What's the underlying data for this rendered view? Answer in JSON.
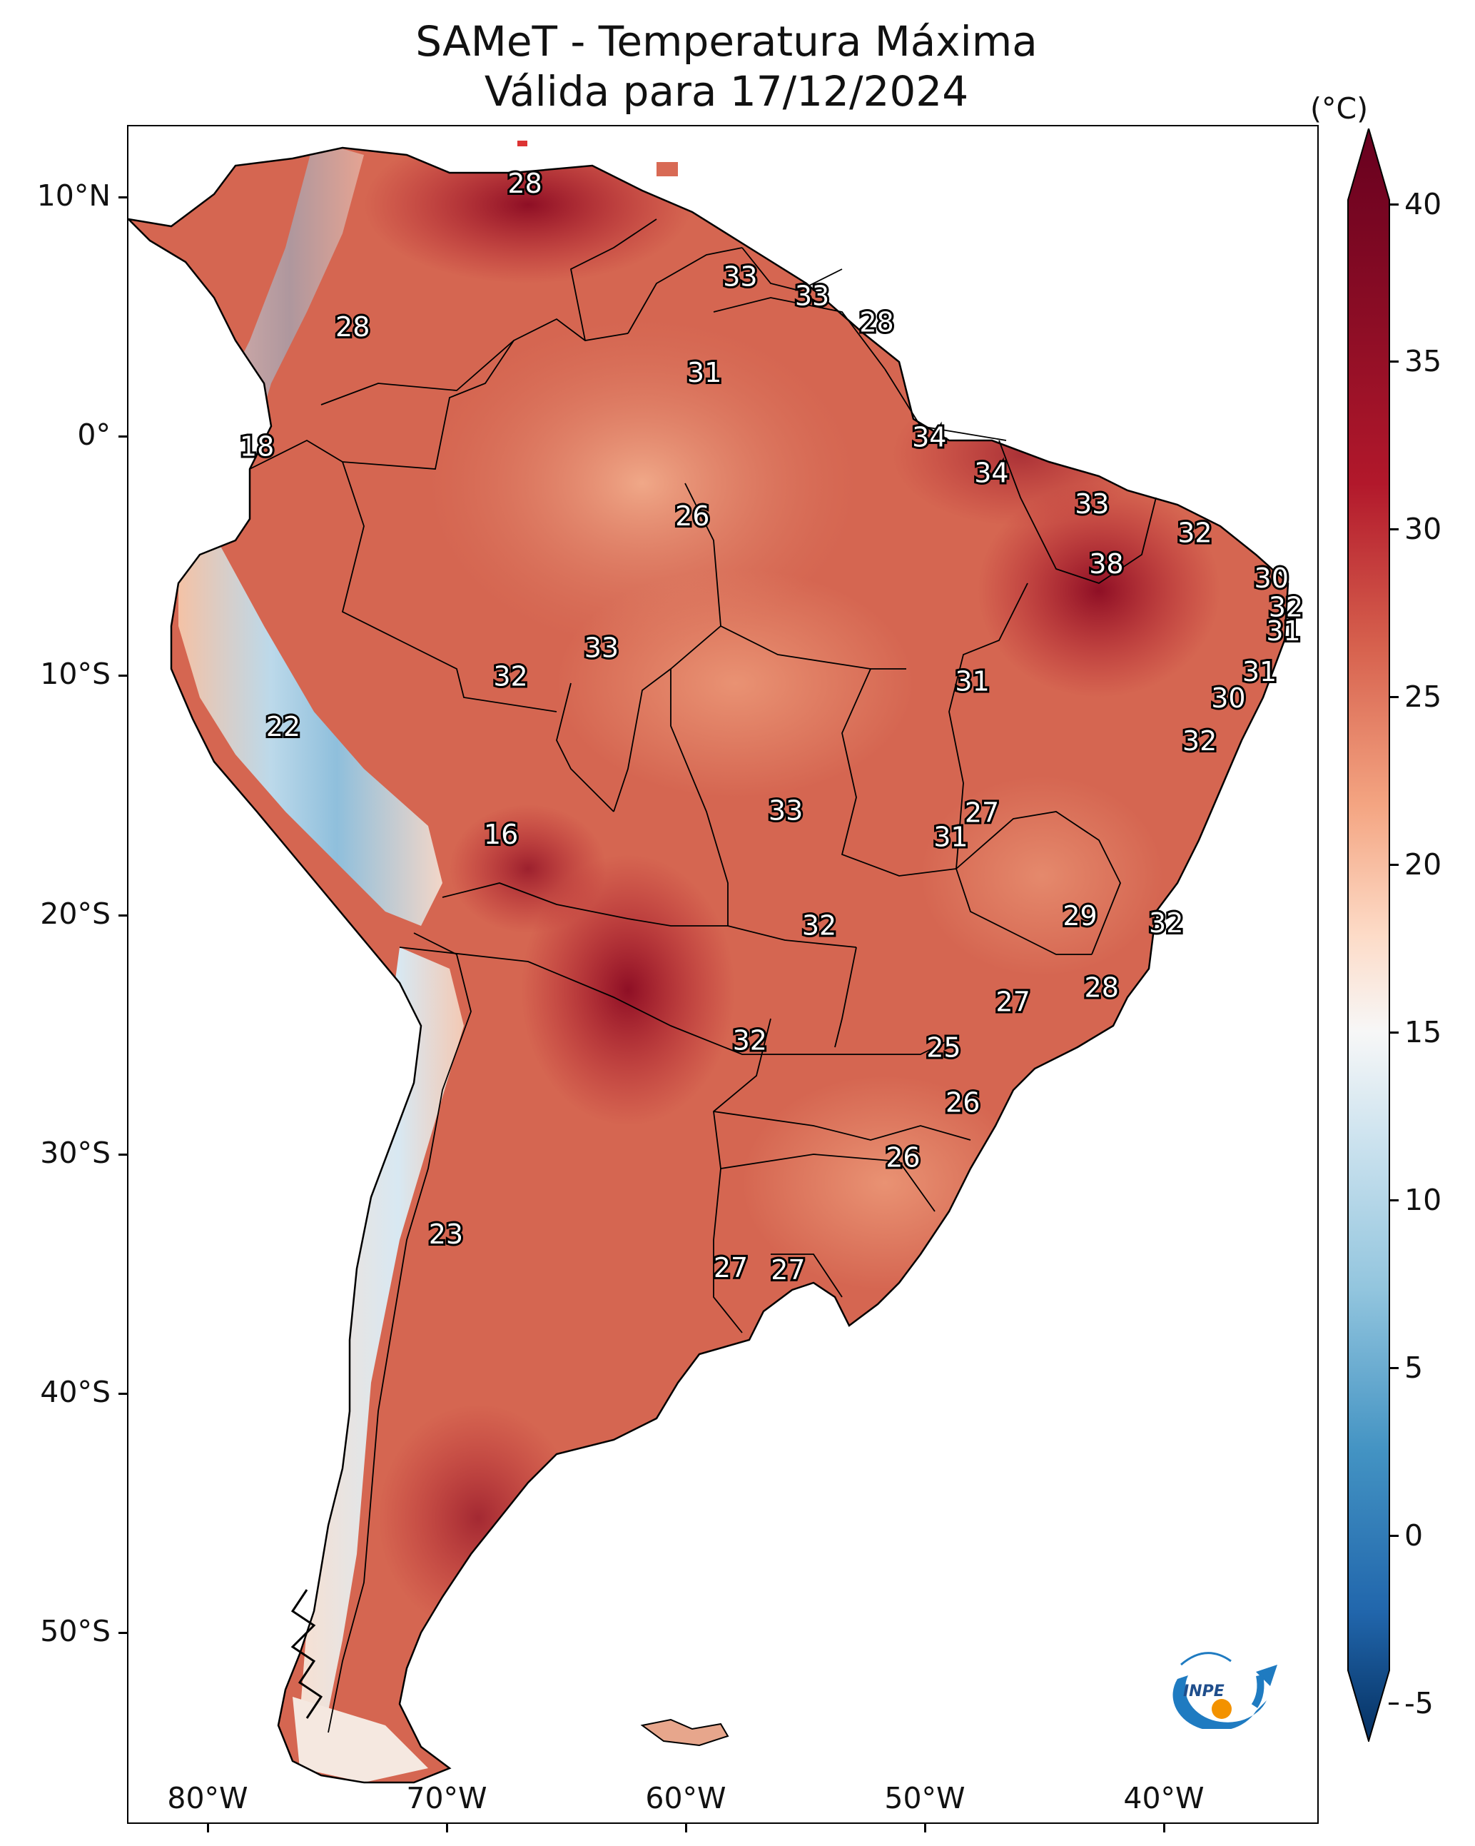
{
  "title": {
    "line1": "SAMeT - Temperatura Máxima",
    "line2": "Válida para 17/12/2024"
  },
  "colorbar": {
    "unit": "(°C)",
    "ticks": [
      "40",
      "35",
      "30",
      "25",
      "20",
      "15",
      "10",
      "5",
      "0",
      "-5"
    ],
    "colors": {
      "min": "#053061",
      "cold": "#4393c3",
      "cool": "#d1e5f0",
      "mid": "#f7f7f7",
      "warm": "#f4a582",
      "hot": "#d6604d",
      "max": "#67001f"
    }
  },
  "axes": {
    "lat_labels": [
      "10°N",
      "0°",
      "10°S",
      "20°S",
      "30°S",
      "40°S",
      "50°S"
    ],
    "lon_labels": [
      "80°W",
      "70°W",
      "60°W",
      "50°W",
      "40°W"
    ]
  },
  "logo": {
    "text": "INPE"
  },
  "map_labels": [
    {
      "value": "28",
      "lon": -66.8,
      "lat": 10.6
    },
    {
      "value": "33",
      "lon": -57.8,
      "lat": 6.7
    },
    {
      "value": "33",
      "lon": -54.8,
      "lat": 5.9
    },
    {
      "value": "28",
      "lon": -52.1,
      "lat": 4.8
    },
    {
      "value": "28",
      "lon": -74.0,
      "lat": 4.6
    },
    {
      "value": "31",
      "lon": -59.3,
      "lat": 2.7
    },
    {
      "value": "34",
      "lon": -49.9,
      "lat": 0.0
    },
    {
      "value": "18",
      "lon": -78.0,
      "lat": -0.4
    },
    {
      "value": "34",
      "lon": -47.3,
      "lat": -1.5
    },
    {
      "value": "33",
      "lon": -43.1,
      "lat": -2.8
    },
    {
      "value": "26",
      "lon": -59.8,
      "lat": -3.3
    },
    {
      "value": "32",
      "lon": -38.8,
      "lat": -4.0
    },
    {
      "value": "38",
      "lon": -42.5,
      "lat": -5.3
    },
    {
      "value": "30",
      "lon": -35.6,
      "lat": -5.9
    },
    {
      "value": "32",
      "lon": -35.0,
      "lat": -7.1
    },
    {
      "value": "31",
      "lon": -35.1,
      "lat": -8.1
    },
    {
      "value": "33",
      "lon": -63.6,
      "lat": -8.8
    },
    {
      "value": "31",
      "lon": -36.1,
      "lat": -9.8
    },
    {
      "value": "32",
      "lon": -67.4,
      "lat": -10.0
    },
    {
      "value": "31",
      "lon": -48.1,
      "lat": -10.2
    },
    {
      "value": "30",
      "lon": -37.4,
      "lat": -10.9
    },
    {
      "value": "32",
      "lon": -38.6,
      "lat": -12.7
    },
    {
      "value": "22",
      "lon": -76.9,
      "lat": -12.1
    },
    {
      "value": "33",
      "lon": -55.9,
      "lat": -15.6
    },
    {
      "value": "27",
      "lon": -47.7,
      "lat": -15.7
    },
    {
      "value": "16",
      "lon": -67.8,
      "lat": -16.6
    },
    {
      "value": "31",
      "lon": -49.0,
      "lat": -16.7
    },
    {
      "value": "29",
      "lon": -43.6,
      "lat": -20.0
    },
    {
      "value": "32",
      "lon": -54.5,
      "lat": -20.4
    },
    {
      "value": "32",
      "lon": -40.0,
      "lat": -20.3
    },
    {
      "value": "28",
      "lon": -42.7,
      "lat": -23.0
    },
    {
      "value": "27",
      "lon": -46.4,
      "lat": -23.6
    },
    {
      "value": "32",
      "lon": -57.4,
      "lat": -25.2
    },
    {
      "value": "25",
      "lon": -49.3,
      "lat": -25.5
    },
    {
      "value": "26",
      "lon": -48.5,
      "lat": -27.8
    },
    {
      "value": "26",
      "lon": -51.0,
      "lat": -30.1
    },
    {
      "value": "23",
      "lon": -70.1,
      "lat": -33.3
    },
    {
      "value": "27",
      "lon": -58.2,
      "lat": -34.7
    },
    {
      "value": "27",
      "lon": -55.8,
      "lat": -34.8
    }
  ]
}
